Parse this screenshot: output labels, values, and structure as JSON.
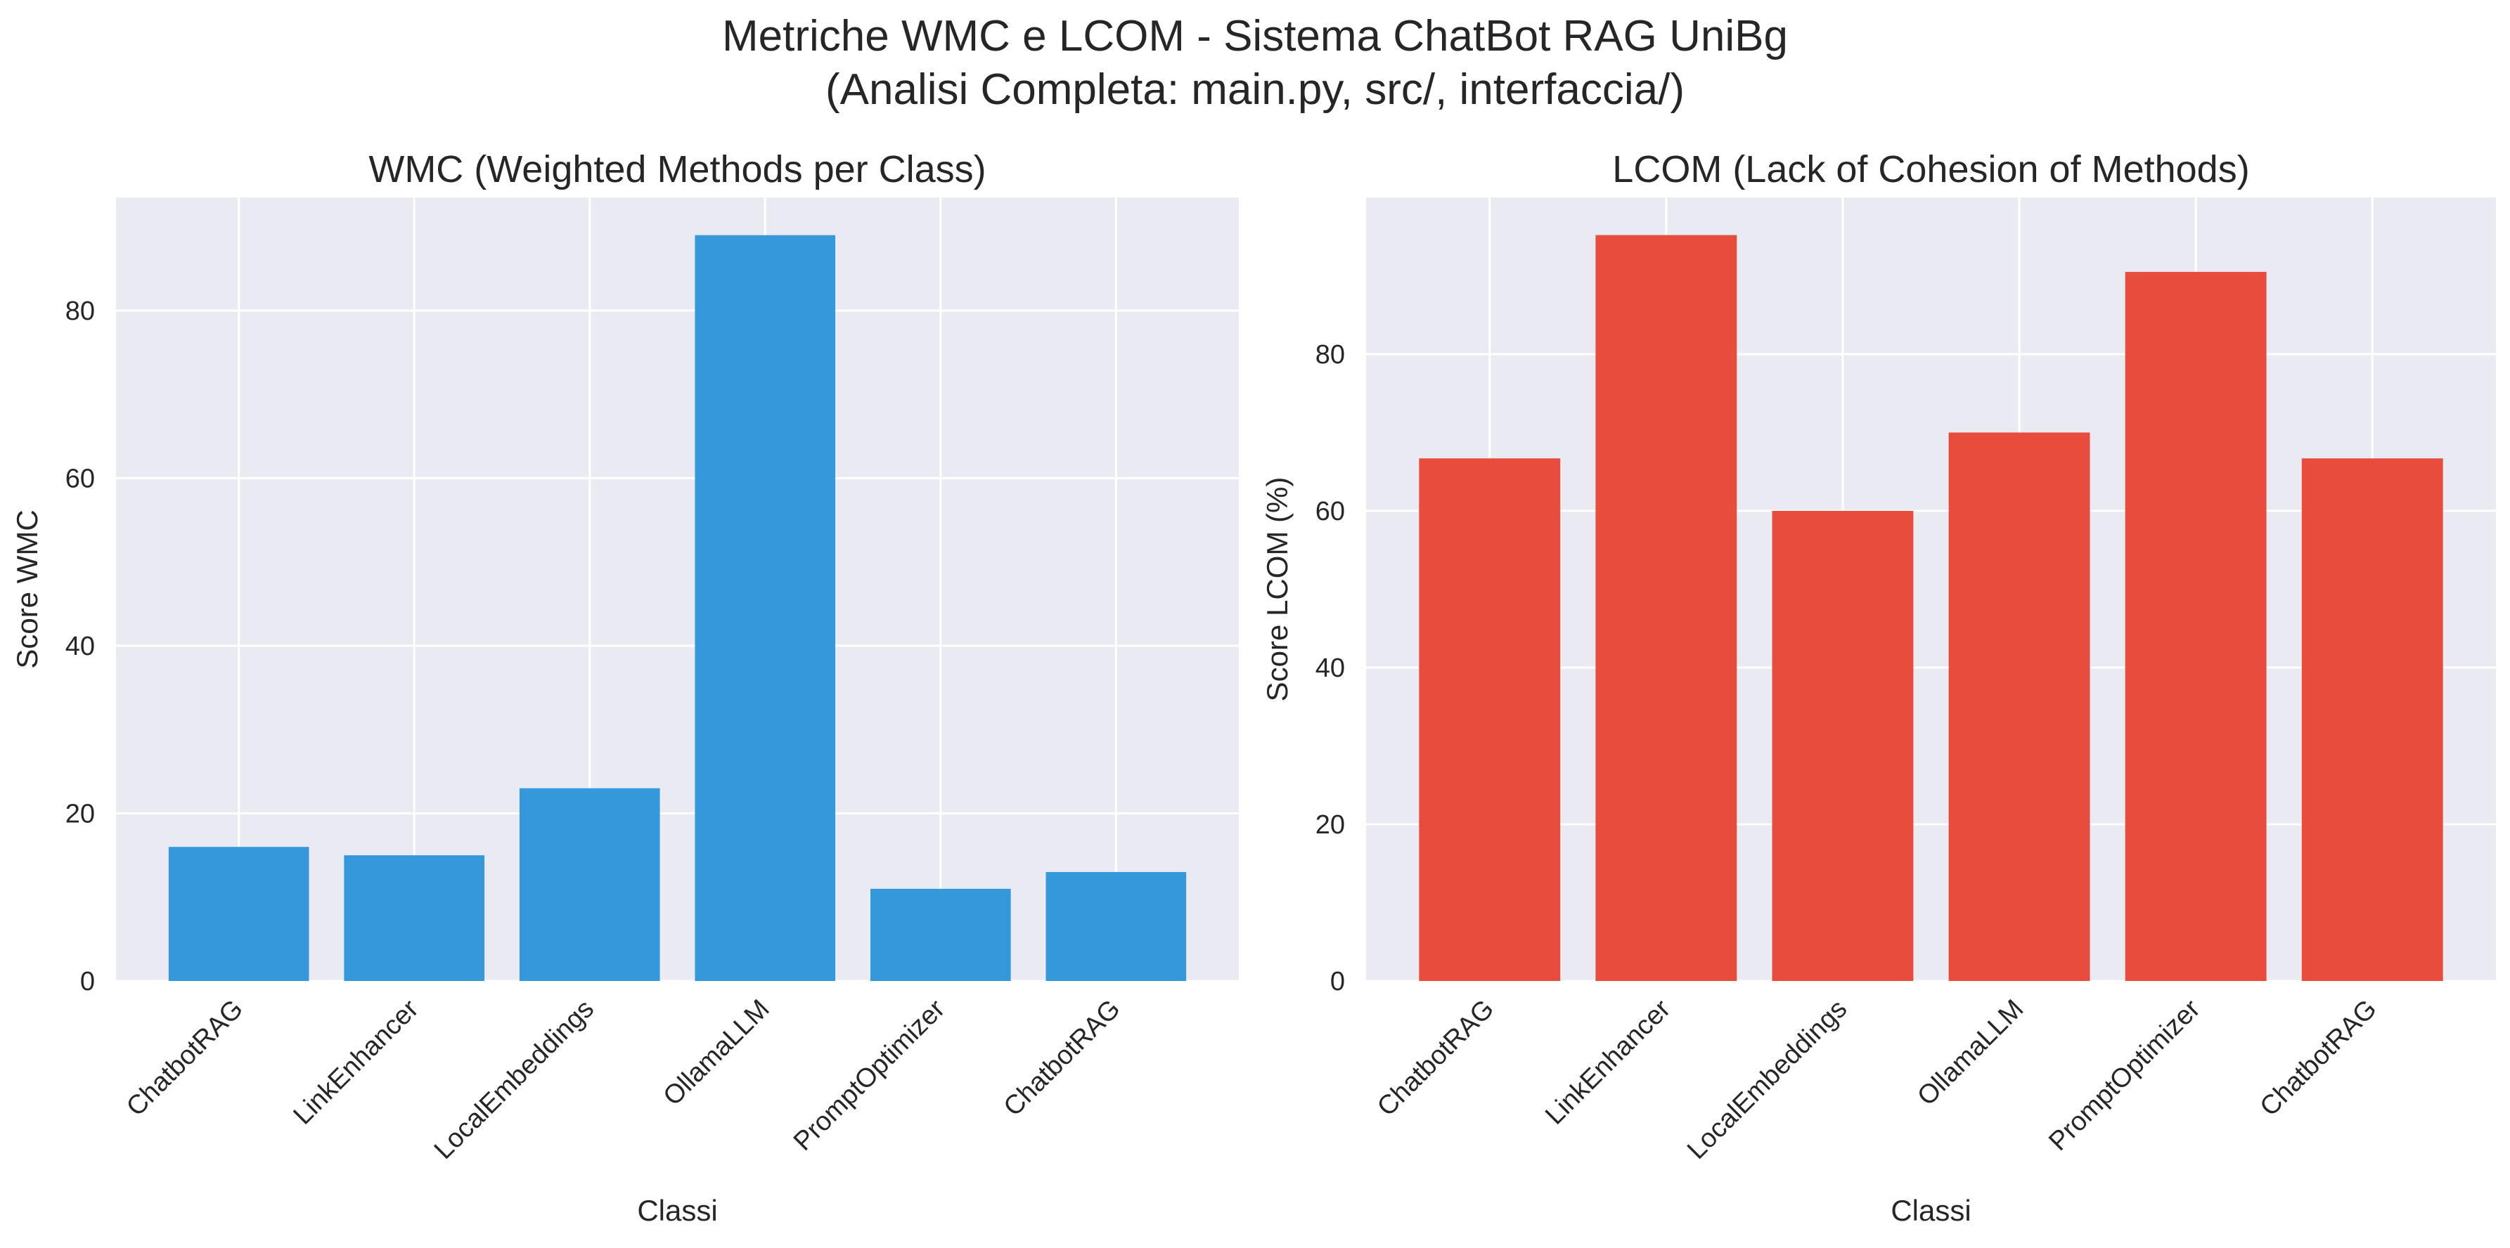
{
  "figure": {
    "title_line1": "Metriche WMC e LCOM - Sistema ChatBot RAG UniBg",
    "title_line2": "(Analisi Completa: main.py, src/, interfaccia/)"
  },
  "colors": {
    "plot_background": "#eaeaf2",
    "grid": "#ffffff",
    "text": "#262626"
  },
  "chart_data": [
    {
      "type": "bar",
      "title": "WMC (Weighted Methods per Class)",
      "xlabel": "Classi",
      "ylabel": "Score WMC",
      "categories": [
        "ChatbotRAG",
        "LinkEnhancer",
        "LocalEmbeddings",
        "OllamaLLM",
        "PromptOptimizer",
        "ChatbotRAG"
      ],
      "values": [
        16,
        15,
        23,
        89,
        11,
        13
      ],
      "ylim": [
        0,
        93.5
      ],
      "yticks": [
        0,
        20,
        40,
        60,
        80
      ],
      "color": "#3498db",
      "grid": true
    },
    {
      "type": "bar",
      "title": "LCOM (Lack of Cohesion of Methods)",
      "xlabel": "Classi",
      "ylabel": "Score LCOM (%)",
      "categories": [
        "ChatbotRAG",
        "LinkEnhancer",
        "LocalEmbeddings",
        "OllamaLLM",
        "PromptOptimizer",
        "ChatbotRAG"
      ],
      "values": [
        66.7,
        95.2,
        60.0,
        70.0,
        90.5,
        66.7
      ],
      "ylim": [
        0,
        100
      ],
      "yticks": [
        0,
        20,
        40,
        60,
        80
      ],
      "color": "#e74c3c",
      "grid": true
    }
  ]
}
